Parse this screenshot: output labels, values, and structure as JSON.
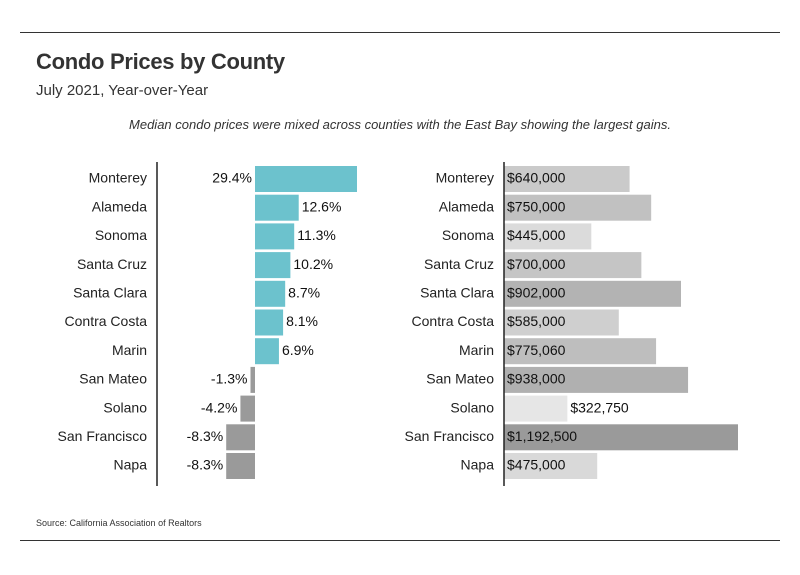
{
  "header": {
    "title": "Condo Prices by County",
    "subtitle": "July 2021, Year-over-Year",
    "note": "Median condo prices were mixed across counties with the East Bay showing the largest gains."
  },
  "footer": {
    "source": "Source:  California Association of Realtors"
  },
  "colors": {
    "pct_positive": "#6cc2cd",
    "pct_negative": "#9a9a9a",
    "price_light": "#e6e6e6",
    "price_dark": "#9a9a9a",
    "axis": "#222222"
  },
  "chart_data": [
    {
      "type": "bar",
      "orientation": "horizontal",
      "categories": [
        "Monterey",
        "Alameda",
        "Sonoma",
        "Santa Cruz",
        "Santa Clara",
        "Contra Costa",
        "Marin",
        "San Mateo",
        "Solano",
        "San Francisco",
        "Napa"
      ],
      "values": [
        29.4,
        12.6,
        11.3,
        10.2,
        8.7,
        8.1,
        6.9,
        -1.3,
        -4.2,
        -8.3,
        -8.3
      ],
      "labels": [
        "29.4%",
        "12.6%",
        "11.3%",
        "10.2%",
        "8.7%",
        "8.1%",
        "6.9%",
        "-1.3%",
        "-4.2%",
        "-8.3%",
        "-8.3%"
      ],
      "xlim": [
        -29,
        29.4
      ]
    },
    {
      "type": "bar",
      "orientation": "horizontal",
      "categories": [
        "Monterey",
        "Alameda",
        "Sonoma",
        "Santa Cruz",
        "Santa Clara",
        "Contra Costa",
        "Marin",
        "San Mateo",
        "Solano",
        "San Francisco",
        "Napa"
      ],
      "values": [
        640000,
        750000,
        445000,
        700000,
        902000,
        585000,
        775060,
        938000,
        322750,
        1192500,
        475000
      ],
      "labels": [
        "$640,000",
        "$750,000",
        "$445,000",
        "$700,000",
        "$902,000",
        "$585,000",
        "$775,060",
        "$938,000",
        "$322,750",
        "$1,192,500",
        "$475,000"
      ],
      "xlim": [
        0,
        1192500
      ]
    }
  ]
}
